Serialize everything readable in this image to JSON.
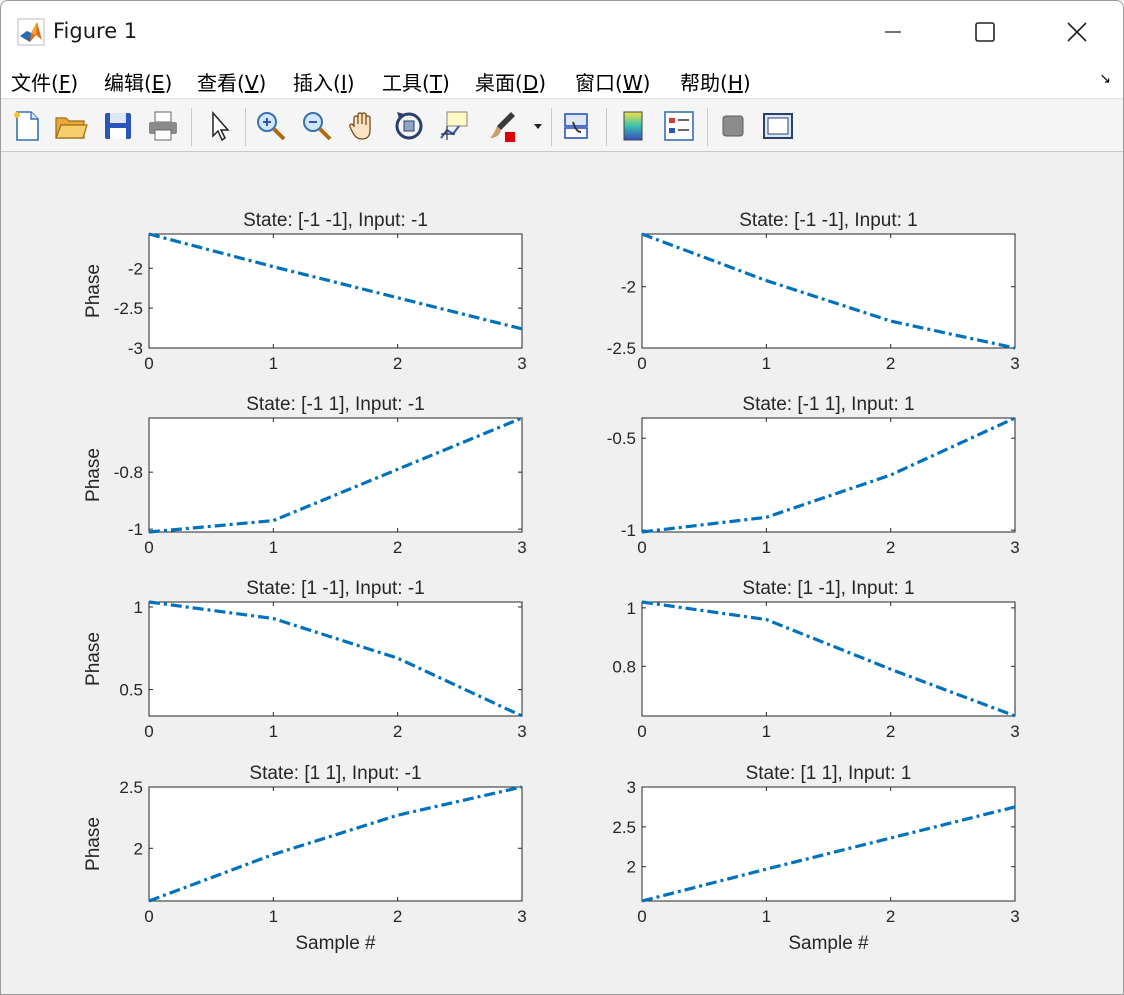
{
  "window": {
    "title": "Figure 1"
  },
  "menu": {
    "items": [
      {
        "text": "文件(",
        "key": "F",
        "close": ")"
      },
      {
        "text": "编辑(",
        "key": "E",
        "close": ")"
      },
      {
        "text": "查看(",
        "key": "V",
        "close": ")"
      },
      {
        "text": "插入(",
        "key": "I",
        "close": ")"
      },
      {
        "text": "工具(",
        "key": "T",
        "close": ")"
      },
      {
        "text": "桌面(",
        "key": "D",
        "close": ")"
      },
      {
        "text": "窗口(",
        "key": "W",
        "close": ")"
      },
      {
        "text": "帮助(",
        "key": "H",
        "close": ")"
      }
    ],
    "dock_arrow": "↘"
  },
  "toolbar": {
    "icons": [
      "new-file-icon",
      "open-folder-icon",
      "save-icon",
      "print-icon",
      "pointer-icon",
      "zoom-in-icon",
      "zoom-out-icon",
      "pan-hand-icon",
      "rotate-3d-icon",
      "data-cursor-icon",
      "brush-icon",
      "link-plot-icon",
      "colorbar-icon",
      "legend-icon",
      "hide-plot-tools-icon",
      "show-plot-tools-icon"
    ]
  },
  "colors": {
    "line": "#0072BD",
    "axes_text": "#262626"
  },
  "chart_data": [
    {
      "type": "line",
      "title": "State: [-1 -1], Input: -1",
      "ylabel": "Phase",
      "xlabel": "",
      "x": [
        0,
        1,
        2,
        3
      ],
      "values": [
        -1.57,
        -1.98,
        -2.37,
        -2.76
      ],
      "xlim": [
        0,
        3
      ],
      "ylim": [
        -3,
        -1.57
      ],
      "xticks": [
        0,
        1,
        2,
        3
      ],
      "yticks": [
        -3,
        -2.5,
        -2
      ],
      "ytick_labels": [
        "-3",
        "-2.5",
        "-2"
      ],
      "line_style": "dash-dot"
    },
    {
      "type": "line",
      "title": "State: [-1 -1], Input: 1",
      "ylabel": "",
      "xlabel": "",
      "x": [
        0,
        1,
        2,
        3
      ],
      "values": [
        -1.57,
        -1.95,
        -2.28,
        -2.5
      ],
      "xlim": [
        0,
        3
      ],
      "ylim": [
        -2.5,
        -1.57
      ],
      "xticks": [
        0,
        1,
        2,
        3
      ],
      "yticks": [
        -2.5,
        -2
      ],
      "ytick_labels": [
        "-2.5",
        "-2"
      ],
      "line_style": "dash-dot"
    },
    {
      "type": "line",
      "title": "State: [-1  1], Input: -1",
      "ylabel": "Phase",
      "xlabel": "",
      "x": [
        0,
        1,
        2,
        3
      ],
      "values": [
        -1.01,
        -0.97,
        -0.79,
        -0.61
      ],
      "xlim": [
        0,
        3
      ],
      "ylim": [
        -1.01,
        -0.61
      ],
      "xticks": [
        0,
        1,
        2,
        3
      ],
      "yticks": [
        -1,
        -0.8
      ],
      "ytick_labels": [
        "-1",
        "-0.8"
      ],
      "line_style": "dash-dot"
    },
    {
      "type": "line",
      "title": "State: [-1  1], Input: 1",
      "ylabel": "",
      "xlabel": "",
      "x": [
        0,
        1,
        2,
        3
      ],
      "values": [
        -1.01,
        -0.93,
        -0.7,
        -0.39
      ],
      "xlim": [
        0,
        3
      ],
      "ylim": [
        -1.01,
        -0.39
      ],
      "xticks": [
        0,
        1,
        2,
        3
      ],
      "yticks": [
        -1,
        -0.5
      ],
      "ytick_labels": [
        "-1",
        "-0.5"
      ],
      "line_style": "dash-dot"
    },
    {
      "type": "line",
      "title": "State: [1 -1], Input: -1",
      "ylabel": "Phase",
      "xlabel": "",
      "x": [
        0,
        1,
        2,
        3
      ],
      "values": [
        1.03,
        0.93,
        0.69,
        0.34
      ],
      "xlim": [
        0,
        3
      ],
      "ylim": [
        0.34,
        1.03
      ],
      "xticks": [
        0,
        1,
        2,
        3
      ],
      "yticks": [
        0.5,
        1
      ],
      "ytick_labels": [
        "0.5",
        "1"
      ],
      "line_style": "dash-dot"
    },
    {
      "type": "line",
      "title": "State: [1 -1], Input: 1",
      "ylabel": "",
      "xlabel": "",
      "x": [
        0,
        1,
        2,
        3
      ],
      "values": [
        1.02,
        0.96,
        0.79,
        0.63
      ],
      "xlim": [
        0,
        3
      ],
      "ylim": [
        0.63,
        1.02
      ],
      "xticks": [
        0,
        1,
        2,
        3
      ],
      "yticks": [
        0.8,
        1
      ],
      "ytick_labels": [
        "0.8",
        "1"
      ],
      "line_style": "dash-dot"
    },
    {
      "type": "line",
      "title": "State: [1  1], Input: -1",
      "ylabel": "Phase",
      "xlabel": "Sample #",
      "x": [
        0,
        1,
        2,
        3
      ],
      "values": [
        1.57,
        1.95,
        2.27,
        2.5
      ],
      "xlim": [
        0,
        3
      ],
      "ylim": [
        1.57,
        2.5
      ],
      "xticks": [
        0,
        1,
        2,
        3
      ],
      "yticks": [
        2,
        2.5
      ],
      "ytick_labels": [
        "2",
        "2.5"
      ],
      "line_style": "dash-dot"
    },
    {
      "type": "line",
      "title": "State: [1  1], Input: 1",
      "ylabel": "",
      "xlabel": "Sample #",
      "x": [
        0,
        1,
        2,
        3
      ],
      "values": [
        1.57,
        1.97,
        2.36,
        2.75
      ],
      "xlim": [
        0,
        3
      ],
      "ylim": [
        1.57,
        3
      ],
      "xticks": [
        0,
        1,
        2,
        3
      ],
      "yticks": [
        2,
        2.5,
        3
      ],
      "ytick_labels": [
        "2",
        "2.5",
        "3"
      ],
      "line_style": "dash-dot"
    }
  ]
}
